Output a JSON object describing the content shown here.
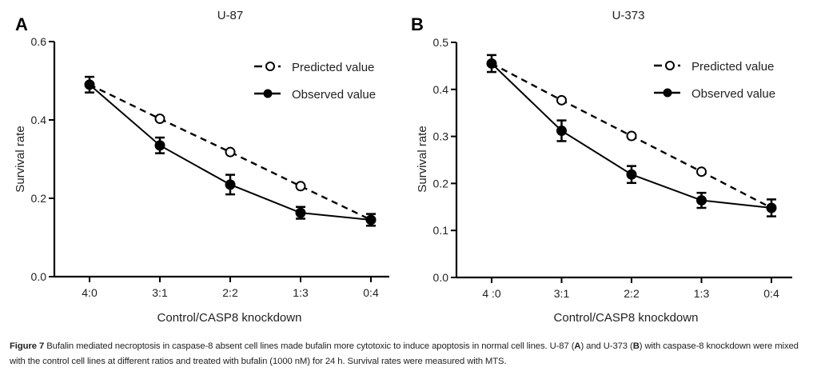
{
  "figure": {
    "caption_label": "Figure 7",
    "caption_parts": [
      " Bufalin mediated necroptosis in caspase-8 absent cell lines made bufalin more cytotoxic to induce apoptosis in normal cell lines. U-87 (",
      "A",
      ") and U-373 (",
      "B",
      ") with caspase-8 knockdown were mixed with the control cell lines at different ratios and treated with bufalin (1000 nM) for 24 h. Survival rates were measured with MTS."
    ]
  },
  "chart_data": [
    {
      "type": "line",
      "panel_label": "A",
      "title": "U-87",
      "xlabel": "Control/CASP8 knockdown",
      "ylabel": "Survival rate",
      "categories": [
        "4:0",
        "3:1",
        "2:2",
        "1:3",
        "0:4"
      ],
      "ylim": [
        0,
        0.6
      ],
      "yticks": [
        0.0,
        0.2,
        0.4,
        0.6
      ],
      "ytick_labels": [
        "0.0",
        "0.2",
        "0.4",
        "0.6"
      ],
      "grid": false,
      "legend_position": "top-right",
      "series": [
        {
          "name": "Predicted value",
          "style": "dashed-open-circle",
          "values": [
            0.49,
            0.403,
            0.318,
            0.231,
            0.145
          ],
          "errors": [
            0,
            0,
            0,
            0,
            0
          ]
        },
        {
          "name": "Observed value",
          "style": "solid-filled-circle",
          "values": [
            0.49,
            0.335,
            0.235,
            0.163,
            0.145
          ],
          "errors": [
            0.02,
            0.02,
            0.025,
            0.015,
            0.015
          ]
        }
      ]
    },
    {
      "type": "line",
      "panel_label": "B",
      "title": "U-373",
      "xlabel": "Control/CASP8 knockdown",
      "ylabel": "Survival rate",
      "categories": [
        "4 :0",
        "3:1",
        "2:2",
        "1:3",
        "0:4"
      ],
      "ylim": [
        0,
        0.5
      ],
      "yticks": [
        0.0,
        0.1,
        0.2,
        0.3,
        0.4,
        0.5
      ],
      "ytick_labels": [
        "0.0",
        "0.1",
        "0.2",
        "0.3",
        "0.4",
        "0.5"
      ],
      "grid": false,
      "legend_position": "top-right",
      "series": [
        {
          "name": "Predicted value",
          "style": "dashed-open-circle",
          "values": [
            0.455,
            0.377,
            0.301,
            0.225,
            0.148
          ],
          "errors": [
            0,
            0,
            0,
            0,
            0
          ]
        },
        {
          "name": "Observed value",
          "style": "solid-filled-circle",
          "values": [
            0.455,
            0.312,
            0.219,
            0.164,
            0.148
          ],
          "errors": [
            0.018,
            0.022,
            0.018,
            0.016,
            0.018
          ]
        }
      ]
    }
  ]
}
